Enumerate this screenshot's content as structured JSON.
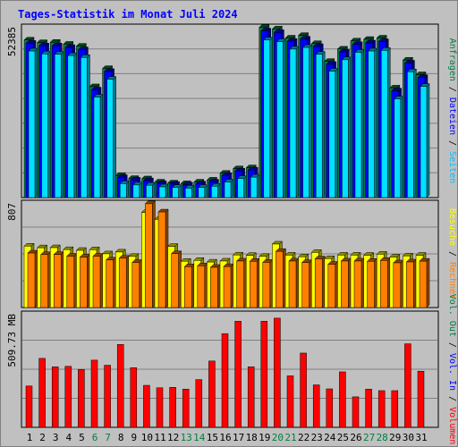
{
  "title": "Tages-Statistik im Monat Juli 2024",
  "colors": {
    "background": "#c0c0c0",
    "title": "#0000ff",
    "grid": "#808080",
    "hits_back": "#008040",
    "files_back": "#0000ff",
    "pages_front": "#00e0ff",
    "visits_back": "#ffff00",
    "sites_front": "#ff8000",
    "volume": "#ff0000",
    "label_hits": "#008040",
    "label_files": "#0000ff",
    "label_pages": "#00c0ff",
    "label_visits": "#ffff00",
    "label_sites": "#ff8000",
    "label_volout": "#008040",
    "label_volin": "#0000ff",
    "label_volume": "#ff0000",
    "day_normal": "#000000",
    "day_weekend": "#008040"
  },
  "right_labels": {
    "top": [
      {
        "text": "Anfragen",
        "color_key": "label_hits"
      },
      {
        "text": " / ",
        "color_key": "day_normal"
      },
      {
        "text": "Dateien",
        "color_key": "label_files"
      },
      {
        "text": " / ",
        "color_key": "day_normal"
      },
      {
        "text": "Seiten",
        "color_key": "label_pages"
      }
    ],
    "middle": [
      {
        "text": "Besuche",
        "color_key": "label_visits"
      },
      {
        "text": " / ",
        "color_key": "day_normal"
      },
      {
        "text": "Rechner",
        "color_key": "label_sites"
      }
    ],
    "bottom": [
      {
        "text": "Vol. Out",
        "color_key": "label_volout"
      },
      {
        "text": " / ",
        "color_key": "day_normal"
      },
      {
        "text": "Vol. In",
        "color_key": "label_volin"
      },
      {
        "text": " / ",
        "color_key": "day_normal"
      },
      {
        "text": "Volumen",
        "color_key": "label_volume"
      }
    ]
  },
  "chart_data": [
    {
      "type": "bar",
      "panel": "hits-files-pages",
      "max_label": "52385",
      "ylim": [
        0,
        52385
      ],
      "categories": [
        "1",
        "2",
        "3",
        "4",
        "5",
        "6",
        "7",
        "8",
        "9",
        "10",
        "11",
        "12",
        "13",
        "14",
        "15",
        "16",
        "17",
        "18",
        "19",
        "20",
        "21",
        "22",
        "23",
        "24",
        "25",
        "26",
        "27",
        "28",
        "29",
        "30",
        "31"
      ],
      "weekend_days": [
        "6",
        "7",
        "13",
        "14",
        "20",
        "21",
        "27",
        "28"
      ],
      "series": [
        {
          "name": "Anfragen",
          "values": [
            48600,
            47800,
            47900,
            47300,
            46700,
            34200,
            39800,
            6800,
            5900,
            5800,
            4800,
            4500,
            4300,
            4800,
            5400,
            7500,
            8900,
            9200,
            52500,
            52000,
            49200,
            50000,
            47500,
            42000,
            45800,
            48300,
            48800,
            49200,
            33800,
            42400,
            37900
          ]
        },
        {
          "name": "Dateien",
          "values": [
            47600,
            46800,
            46800,
            46300,
            45600,
            33200,
            38900,
            6200,
            5400,
            5200,
            4300,
            4100,
            3900,
            4200,
            4800,
            6800,
            8200,
            8500,
            51400,
            50900,
            48200,
            48900,
            46600,
            41100,
            44900,
            47200,
            47700,
            48100,
            32900,
            41500,
            37000
          ]
        },
        {
          "name": "Seiten",
          "values": [
            45200,
            44300,
            44200,
            43800,
            43200,
            31000,
            36500,
            4300,
            3900,
            3800,
            3300,
            3100,
            2900,
            3100,
            3500,
            4800,
            5900,
            6300,
            48600,
            48100,
            45800,
            46300,
            44200,
            39000,
            42500,
            44800,
            45200,
            45400,
            30400,
            38800,
            34300
          ]
        }
      ]
    },
    {
      "type": "bar",
      "panel": "visits-sites",
      "max_label": "807",
      "ylim": [
        0,
        807
      ],
      "categories": [
        "1",
        "2",
        "3",
        "4",
        "5",
        "6",
        "7",
        "8",
        "9",
        "10",
        "11",
        "12",
        "13",
        "14",
        "15",
        "16",
        "17",
        "18",
        "19",
        "20",
        "21",
        "22",
        "23",
        "24",
        "25",
        "26",
        "27",
        "28",
        "29",
        "30",
        "31"
      ],
      "series": [
        {
          "name": "Besuche",
          "values": [
            478,
            465,
            466,
            451,
            445,
            450,
            418,
            432,
            398,
            740,
            686,
            476,
            360,
            367,
            354,
            362,
            409,
            406,
            398,
            494,
            408,
            395,
            429,
            381,
            408,
            408,
            407,
            415,
            393,
            402,
            407
          ]
        },
        {
          "name": "Rechner",
          "values": [
            424,
            412,
            413,
            400,
            393,
            400,
            370,
            384,
            351,
            808,
            744,
            419,
            318,
            325,
            313,
            319,
            362,
            360,
            352,
            437,
            362,
            350,
            379,
            337,
            362,
            362,
            360,
            367,
            348,
            355,
            361
          ]
        }
      ]
    },
    {
      "type": "bar",
      "panel": "volume",
      "max_label": "509.73 MB",
      "ylim": [
        0,
        509.73
      ],
      "categories": [
        "1",
        "2",
        "3",
        "4",
        "5",
        "6",
        "7",
        "8",
        "9",
        "10",
        "11",
        "12",
        "13",
        "14",
        "15",
        "16",
        "17",
        "18",
        "19",
        "20",
        "21",
        "22",
        "23",
        "24",
        "25",
        "26",
        "27",
        "28",
        "29",
        "30",
        "31"
      ],
      "series": [
        {
          "name": "Volumen",
          "values": [
            187,
            312,
            274,
            276,
            262,
            304,
            281,
            375,
            270,
            190,
            179,
            181,
            173,
            216,
            300,
            424,
            480,
            274,
            480,
            494,
            233,
            336,
            192,
            174,
            251,
            138,
            173,
            166,
            166,
            378,
            254
          ]
        }
      ]
    }
  ]
}
